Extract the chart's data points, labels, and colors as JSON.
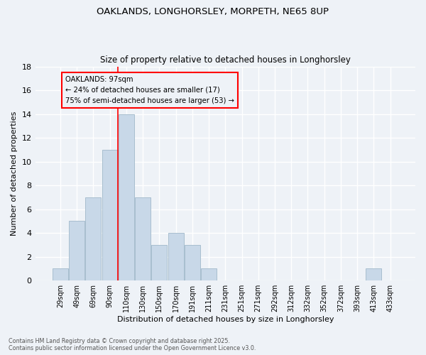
{
  "title1": "OAKLANDS, LONGHORSLEY, MORPETH, NE65 8UP",
  "title2": "Size of property relative to detached houses in Longhorsley",
  "xlabel": "Distribution of detached houses by size in Longhorsley",
  "ylabel": "Number of detached properties",
  "bar_color": "#c8d8e8",
  "bar_edgecolor": "#a8bece",
  "categories": [
    "29sqm",
    "49sqm",
    "69sqm",
    "90sqm",
    "110sqm",
    "130sqm",
    "150sqm",
    "170sqm",
    "191sqm",
    "211sqm",
    "231sqm",
    "251sqm",
    "271sqm",
    "292sqm",
    "312sqm",
    "332sqm",
    "352sqm",
    "372sqm",
    "393sqm",
    "413sqm",
    "433sqm"
  ],
  "values": [
    1,
    5,
    7,
    11,
    14,
    7,
    3,
    4,
    3,
    1,
    0,
    0,
    0,
    0,
    0,
    0,
    0,
    0,
    0,
    1,
    0
  ],
  "red_line_x": 3.5,
  "annotation_line1": "OAKLANDS: 97sqm",
  "annotation_line2": "← 24% of detached houses are smaller (17)",
  "annotation_line3": "75% of semi-detached houses are larger (53) →",
  "ylim": [
    0,
    18
  ],
  "yticks": [
    0,
    2,
    4,
    6,
    8,
    10,
    12,
    14,
    16,
    18
  ],
  "footer1": "Contains HM Land Registry data © Crown copyright and database right 2025.",
  "footer2": "Contains public sector information licensed under the Open Government Licence v3.0.",
  "background_color": "#eef2f7",
  "grid_color": "#ffffff"
}
